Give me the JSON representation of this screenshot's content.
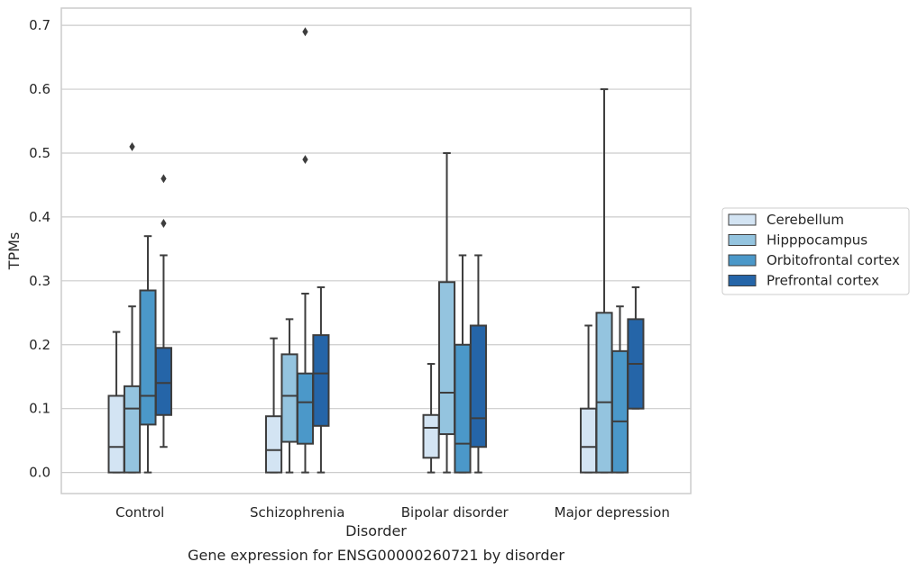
{
  "chart_data": {
    "type": "boxplot",
    "caption": "Gene expression for ENSG00000260721 by disorder",
    "xlabel": "Disorder",
    "ylabel": "TPMs",
    "ylim": [
      -0.033,
      0.727
    ],
    "yticks": [
      0.0,
      0.1,
      0.2,
      0.3,
      0.4,
      0.5,
      0.6,
      0.7
    ],
    "ytick_labels": [
      "0.0",
      "0.1",
      "0.2",
      "0.3",
      "0.4",
      "0.5",
      "0.6",
      "0.7"
    ],
    "grid": "horizontal",
    "legend_position": "right",
    "categories": [
      "Control",
      "Schizophrenia",
      "Bipolar disorder",
      "Major depression"
    ],
    "series": [
      {
        "name": "Cerebellum",
        "color": "#d3e4f3",
        "boxes": [
          {
            "whisker_low": 0.0,
            "q1": 0.0,
            "median": 0.04,
            "q3": 0.12,
            "whisker_high": 0.22,
            "outliers": []
          },
          {
            "whisker_low": 0.0,
            "q1": 0.0,
            "median": 0.035,
            "q3": 0.088,
            "whisker_high": 0.21,
            "outliers": []
          },
          {
            "whisker_low": 0.0,
            "q1": 0.023,
            "median": 0.07,
            "q3": 0.09,
            "whisker_high": 0.17,
            "outliers": []
          },
          {
            "whisker_low": 0.0,
            "q1": 0.0,
            "median": 0.04,
            "q3": 0.1,
            "whisker_high": 0.23,
            "outliers": []
          }
        ]
      },
      {
        "name": "Hipppocampus",
        "color": "#94c4df",
        "boxes": [
          {
            "whisker_low": 0.0,
            "q1": 0.0,
            "median": 0.1,
            "q3": 0.135,
            "whisker_high": 0.26,
            "outliers": [
              0.51
            ]
          },
          {
            "whisker_low": 0.0,
            "q1": 0.048,
            "median": 0.12,
            "q3": 0.185,
            "whisker_high": 0.24,
            "outliers": []
          },
          {
            "whisker_low": 0.0,
            "q1": 0.06,
            "median": 0.125,
            "q3": 0.298,
            "whisker_high": 0.5,
            "outliers": []
          },
          {
            "whisker_low": 0.0,
            "q1": 0.0,
            "median": 0.11,
            "q3": 0.25,
            "whisker_high": 0.6,
            "outliers": []
          }
        ]
      },
      {
        "name": "Orbitofrontal cortex",
        "color": "#4b98c9",
        "boxes": [
          {
            "whisker_low": 0.0,
            "q1": 0.075,
            "median": 0.12,
            "q3": 0.285,
            "whisker_high": 0.37,
            "outliers": []
          },
          {
            "whisker_low": 0.0,
            "q1": 0.045,
            "median": 0.11,
            "q3": 0.155,
            "whisker_high": 0.28,
            "outliers": [
              0.49,
              0.69
            ]
          },
          {
            "whisker_low": 0.0,
            "q1": 0.0,
            "median": 0.045,
            "q3": 0.2,
            "whisker_high": 0.34,
            "outliers": []
          },
          {
            "whisker_low": 0.0,
            "q1": 0.0,
            "median": 0.08,
            "q3": 0.19,
            "whisker_high": 0.26,
            "outliers": []
          }
        ]
      },
      {
        "name": "Prefrontal cortex",
        "color": "#2565a8",
        "boxes": [
          {
            "whisker_low": 0.04,
            "q1": 0.09,
            "median": 0.14,
            "q3": 0.195,
            "whisker_high": 0.34,
            "outliers": [
              0.39,
              0.46
            ]
          },
          {
            "whisker_low": 0.0,
            "q1": 0.073,
            "median": 0.155,
            "q3": 0.215,
            "whisker_high": 0.29,
            "outliers": []
          },
          {
            "whisker_low": 0.0,
            "q1": 0.04,
            "median": 0.085,
            "q3": 0.23,
            "whisker_high": 0.34,
            "outliers": []
          },
          {
            "whisker_low": 0.1,
            "q1": 0.1,
            "median": 0.17,
            "q3": 0.24,
            "whisker_high": 0.29,
            "outliers": []
          }
        ]
      }
    ]
  }
}
